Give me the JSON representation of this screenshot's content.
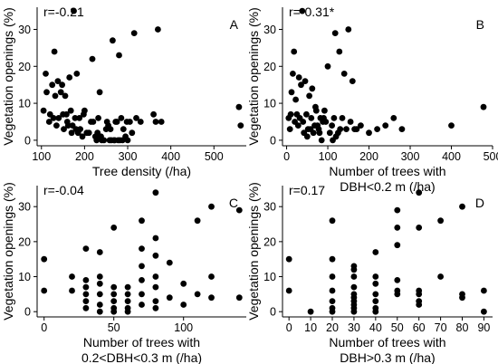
{
  "chart_data": [
    {
      "type": "scatter",
      "panel_label": "A",
      "annotation": "r=-0.21",
      "xlabel": [
        "Tree density (/ha)"
      ],
      "ylabel": "Vegetation openings (%)",
      "xlim": [
        90,
        575
      ],
      "ylim": [
        -1.5,
        36
      ],
      "xticks": [
        100,
        200,
        300,
        400,
        500
      ],
      "yticks": [
        0,
        10,
        20,
        30
      ],
      "x": [
        105,
        110,
        112,
        118,
        120,
        125,
        128,
        130,
        132,
        135,
        138,
        140,
        145,
        148,
        150,
        152,
        155,
        158,
        160,
        162,
        165,
        168,
        170,
        172,
        175,
        178,
        180,
        182,
        185,
        188,
        190,
        195,
        198,
        200,
        205,
        210,
        215,
        218,
        220,
        225,
        228,
        230,
        232,
        235,
        238,
        240,
        245,
        250,
        252,
        255,
        258,
        260,
        262,
        265,
        268,
        270,
        272,
        275,
        278,
        280,
        282,
        285,
        288,
        290,
        295,
        298,
        300,
        305,
        310,
        315,
        320,
        330,
        360,
        365,
        370,
        378,
        558,
        562
      ],
      "y": [
        8,
        18,
        13,
        5,
        7,
        15,
        6,
        24,
        12,
        4,
        16,
        6,
        13,
        15,
        7,
        3,
        12,
        7,
        5,
        4,
        17,
        8,
        2,
        4,
        35,
        6,
        3,
        18,
        2,
        6,
        3,
        1,
        7,
        8,
        2,
        2,
        5,
        22,
        5,
        1,
        0,
        2,
        6,
        13,
        1,
        0,
        0,
        3,
        5,
        4,
        0,
        3,
        0,
        27,
        0,
        0,
        5,
        5,
        0,
        23,
        0,
        6,
        0,
        3,
        1,
        5,
        0,
        5,
        2,
        29,
        6,
        5,
        7,
        5,
        30,
        5,
        9,
        4
      ]
    },
    {
      "type": "scatter",
      "panel_label": "B",
      "annotation": "r=-0.31*",
      "xlabel": [
        "Number of trees with",
        "DBH<0.2 m (/ha)"
      ],
      "ylabel": "Vegetation openings (%)",
      "xlim": [
        -10,
        500
      ],
      "ylim": [
        -1.5,
        36
      ],
      "xticks": [
        0,
        100,
        200,
        300,
        400,
        500
      ],
      "yticks": [
        0,
        10,
        20,
        30
      ],
      "x": [
        5,
        8,
        10,
        12,
        15,
        18,
        20,
        22,
        25,
        28,
        30,
        32,
        35,
        38,
        40,
        42,
        45,
        48,
        50,
        52,
        55,
        58,
        60,
        62,
        65,
        68,
        70,
        72,
        75,
        78,
        80,
        82,
        85,
        88,
        90,
        92,
        95,
        100,
        105,
        110,
        112,
        115,
        118,
        120,
        125,
        128,
        130,
        135,
        140,
        145,
        150,
        155,
        160,
        165,
        170,
        180,
        200,
        220,
        240,
        260,
        280,
        400,
        478
      ],
      "y": [
        6,
        3,
        7,
        13,
        18,
        24,
        5,
        11,
        7,
        4,
        17,
        6,
        15,
        35,
        5,
        2,
        16,
        7,
        1,
        3,
        12,
        3,
        6,
        14,
        2,
        4,
        9,
        8,
        4,
        3,
        2,
        6,
        0,
        5,
        6,
        8,
        5,
        20,
        2,
        4,
        0,
        6,
        29,
        1,
        2,
        24,
        3,
        6,
        18,
        3,
        30,
        5,
        16,
        3,
        3,
        4,
        2,
        3,
        4,
        6,
        3,
        4,
        9
      ]
    },
    {
      "type": "scatter",
      "panel_label": "C",
      "annotation": "r=-0.04",
      "xlabel": [
        "Number of trees with",
        "0.2<DBH<0.3 m (/ha)"
      ],
      "ylabel": "Vegetation openings (%)",
      "xlim": [
        -5,
        145
      ],
      "ylim": [
        -1.5,
        36
      ],
      "xticks": [
        0,
        50,
        100
      ],
      "yticks": [
        0,
        10,
        20,
        30
      ],
      "x": [
        0,
        0,
        20,
        20,
        30,
        30,
        30,
        30,
        30,
        30,
        40,
        40,
        40,
        40,
        40,
        40,
        50,
        50,
        50,
        50,
        50,
        50,
        60,
        60,
        60,
        60,
        60,
        70,
        70,
        70,
        70,
        70,
        70,
        80,
        80,
        80,
        80,
        80,
        80,
        80,
        90,
        90,
        100,
        100,
        110,
        110,
        120,
        120,
        120,
        140,
        140
      ],
      "y": [
        15,
        6,
        10,
        6,
        18,
        9,
        7,
        5,
        3,
        1,
        17,
        10,
        8,
        5,
        2,
        0,
        24,
        7,
        5,
        3,
        1,
        0,
        7,
        5,
        3,
        1,
        0,
        26,
        18,
        13,
        9,
        5,
        2,
        34,
        21,
        16,
        10,
        7,
        3,
        1,
        14,
        4,
        8,
        2,
        26,
        5,
        30,
        10,
        4,
        29,
        4
      ]
    },
    {
      "type": "scatter",
      "panel_label": "D",
      "annotation": "r=0.17",
      "xlabel": [
        "Number of trees with",
        "DBH>0.3 m (/ha)"
      ],
      "ylabel": "Vegetation openings (%)",
      "xlim": [
        -3,
        94
      ],
      "ylim": [
        -1.5,
        36
      ],
      "xticks": [
        0,
        10,
        20,
        30,
        40,
        50,
        60,
        70,
        80,
        90
      ],
      "yticks": [
        0,
        10,
        20,
        30
      ],
      "x": [
        0,
        0,
        10,
        20,
        20,
        20,
        20,
        20,
        20,
        20,
        30,
        30,
        30,
        30,
        30,
        30,
        30,
        30,
        30,
        30,
        40,
        40,
        40,
        40,
        40,
        40,
        40,
        50,
        50,
        50,
        50,
        50,
        50,
        60,
        60,
        60,
        60,
        60,
        60,
        70,
        70,
        80,
        80,
        80,
        90,
        90
      ],
      "y": [
        15,
        6,
        0,
        26,
        15,
        10,
        6,
        3,
        1,
        0,
        13,
        12,
        10,
        7,
        5,
        4,
        3,
        2,
        1,
        0,
        17,
        10,
        8,
        5,
        3,
        1,
        0,
        29,
        24,
        19,
        9,
        6,
        5,
        34,
        24,
        6,
        5,
        3,
        2,
        26,
        10,
        30,
        5,
        4,
        6,
        0
      ]
    }
  ]
}
